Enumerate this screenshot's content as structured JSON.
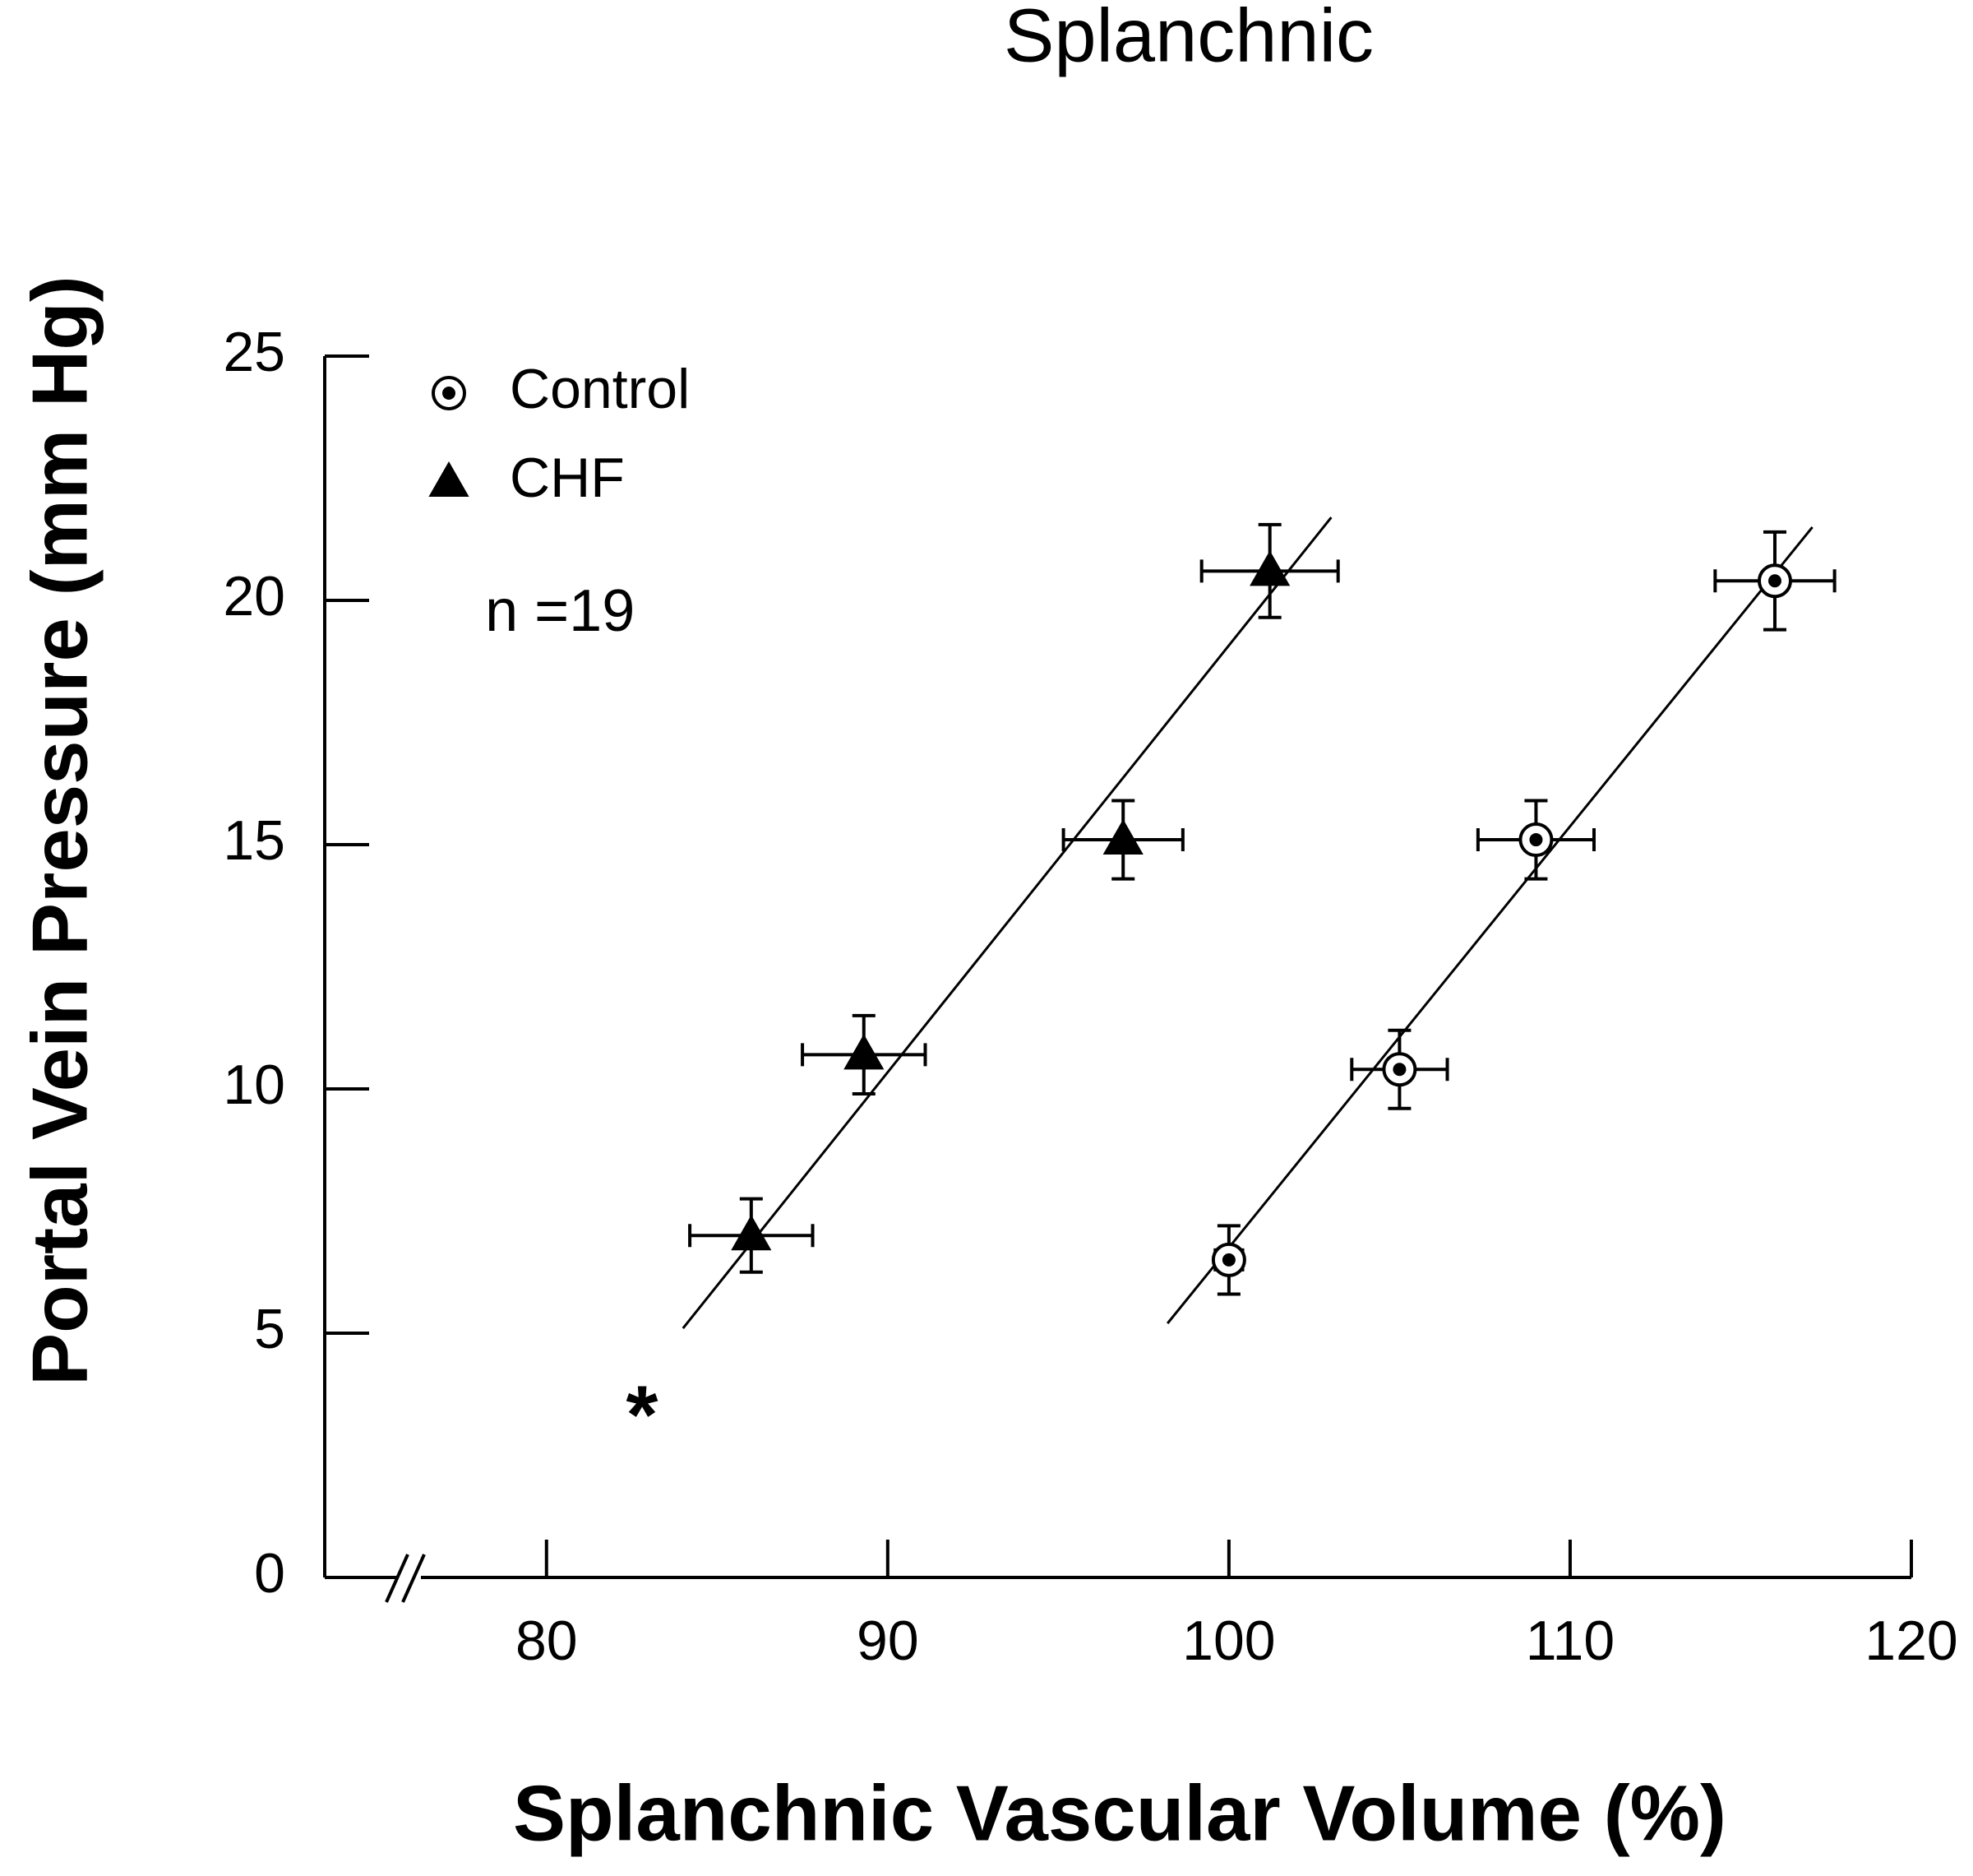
{
  "chart_data": {
    "type": "scatter",
    "title": "Splanchnic",
    "x_label": "Splanchnic Vascular Volume (%)",
    "y_label": "Portal Vein Pressure (mm Hg)",
    "xlim": [
      73.5,
      120
    ],
    "xticks": [
      80,
      90,
      100,
      110,
      120
    ],
    "ylim": [
      0,
      25
    ],
    "yticks": [
      0,
      5,
      10,
      15,
      20,
      25
    ],
    "legend": "upper left",
    "series": [
      {
        "name": "Control",
        "color": "#000000",
        "marker": "circle-dot",
        "x": [
          100,
          105,
          109,
          116
        ],
        "y": [
          6.5,
          10.4,
          15.1,
          20.4
        ],
        "xerr": [
          0.4,
          1.4,
          1.7,
          1.75
        ],
        "yerr": [
          0.7,
          0.8,
          0.8,
          1.0
        ],
        "fit": {
          "x": [
            98.2,
            117.1
          ],
          "y": [
            5.2,
            21.5
          ]
        }
      },
      {
        "name": "CHF",
        "color": "#000000",
        "marker": "triangle",
        "x": [
          86,
          89.3,
          96.9,
          101.2
        ],
        "y": [
          7.0,
          10.7,
          15.1,
          20.6
        ],
        "xerr": [
          1.8,
          1.8,
          1.75,
          2.0
        ],
        "yerr": [
          0.75,
          0.8,
          0.8,
          0.95
        ],
        "fit": {
          "x": [
            84.0,
            103.0
          ],
          "y": [
            5.1,
            21.7
          ]
        }
      }
    ],
    "annotations": [
      {
        "text": "n =19",
        "x": 78.2,
        "y": 19.7
      },
      {
        "text": "*",
        "x": 82.8,
        "y": 3.5
      }
    ]
  }
}
